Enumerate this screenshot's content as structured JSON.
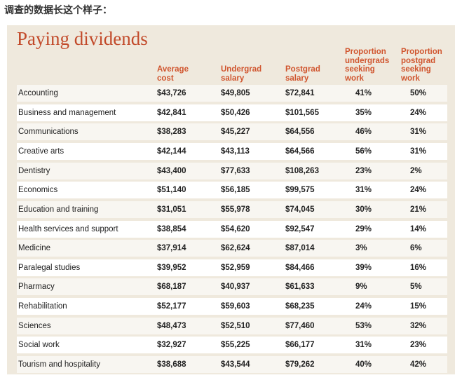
{
  "caption": "调查的数据长这个样子：",
  "chart_data": {
    "type": "table",
    "title": "Paying dividends",
    "columns": [
      {
        "key": "field",
        "label": ""
      },
      {
        "key": "cost",
        "label": "Average cost"
      },
      {
        "key": "ug_salary",
        "label": "Undergrad salary"
      },
      {
        "key": "pg_salary",
        "label": "Postgrad salary"
      },
      {
        "key": "ug_seeking",
        "label": "Proportion undergrads seeking work"
      },
      {
        "key": "pg_seeking",
        "label": "Proportion postgrad seeking work"
      }
    ],
    "header_lines": {
      "cost": [
        "Average",
        "cost"
      ],
      "ug_salary": [
        "Undergrad",
        "salary"
      ],
      "pg_salary": [
        "Postgrad",
        "salary"
      ],
      "ug_seeking": [
        "Proportion",
        "undergrads",
        "seeking",
        "work"
      ],
      "pg_seeking": [
        "Proportion",
        "postgrad",
        "seeking",
        "work"
      ]
    },
    "rows": [
      {
        "field": "Accounting",
        "cost": "$43,726",
        "ug_salary": "$49,805",
        "pg_salary": "$72,841",
        "ug_seeking": "41%",
        "pg_seeking": "50%"
      },
      {
        "field": "Business and management",
        "cost": "$42,841",
        "ug_salary": "$50,426",
        "pg_salary": "$101,565",
        "ug_seeking": "35%",
        "pg_seeking": "24%"
      },
      {
        "field": "Communications",
        "cost": "$38,283",
        "ug_salary": "$45,227",
        "pg_salary": "$64,556",
        "ug_seeking": "46%",
        "pg_seeking": "31%"
      },
      {
        "field": "Creative arts",
        "cost": "$42,144",
        "ug_salary": "$43,113",
        "pg_salary": "$64,566",
        "ug_seeking": "56%",
        "pg_seeking": "31%"
      },
      {
        "field": "Dentistry",
        "cost": "$43,400",
        "ug_salary": "$77,633",
        "pg_salary": "$108,263",
        "ug_seeking": "23%",
        "pg_seeking": "2%"
      },
      {
        "field": "Economics",
        "cost": "$51,140",
        "ug_salary": "$56,185",
        "pg_salary": "$99,575",
        "ug_seeking": "31%",
        "pg_seeking": "24%"
      },
      {
        "field": "Education and training",
        "cost": "$31,051",
        "ug_salary": "$55,978",
        "pg_salary": "$74,045",
        "ug_seeking": "30%",
        "pg_seeking": "21%"
      },
      {
        "field": "Health services and support",
        "cost": "$38,854",
        "ug_salary": "$54,620",
        "pg_salary": "$92,547",
        "ug_seeking": "29%",
        "pg_seeking": "14%"
      },
      {
        "field": "Medicine",
        "cost": "$37,914",
        "ug_salary": "$62,624",
        "pg_salary": "$87,014",
        "ug_seeking": "3%",
        "pg_seeking": "6%"
      },
      {
        "field": "Paralegal studies",
        "cost": "$39,952",
        "ug_salary": "$52,959",
        "pg_salary": "$84,466",
        "ug_seeking": "39%",
        "pg_seeking": "16%"
      },
      {
        "field": "Pharmacy",
        "cost": "$68,187",
        "ug_salary": "$40,937",
        "pg_salary": "$61,633",
        "ug_seeking": "9%",
        "pg_seeking": "5%"
      },
      {
        "field": "Rehabilitation",
        "cost": "$52,177",
        "ug_salary": "$59,603",
        "pg_salary": "$68,235",
        "ug_seeking": "24%",
        "pg_seeking": "15%"
      },
      {
        "field": "Sciences",
        "cost": "$48,473",
        "ug_salary": "$52,510",
        "pg_salary": "$77,460",
        "ug_seeking": "53%",
        "pg_seeking": "32%"
      },
      {
        "field": "Social work",
        "cost": "$32,927",
        "ug_salary": "$55,225",
        "pg_salary": "$66,177",
        "ug_seeking": "31%",
        "pg_seeking": "23%"
      },
      {
        "field": "Tourism and hospitality",
        "cost": "$38,688",
        "ug_salary": "$43,544",
        "pg_salary": "$79,262",
        "ug_seeking": "40%",
        "pg_seeking": "42%"
      }
    ]
  },
  "colors": {
    "panel_background": "#efe9dd",
    "row_background": "#f8f6f1",
    "row_alt_background": "#ffffff",
    "title": "#c24a2a",
    "header_text": "#d0552e",
    "body_text": "#222222"
  }
}
